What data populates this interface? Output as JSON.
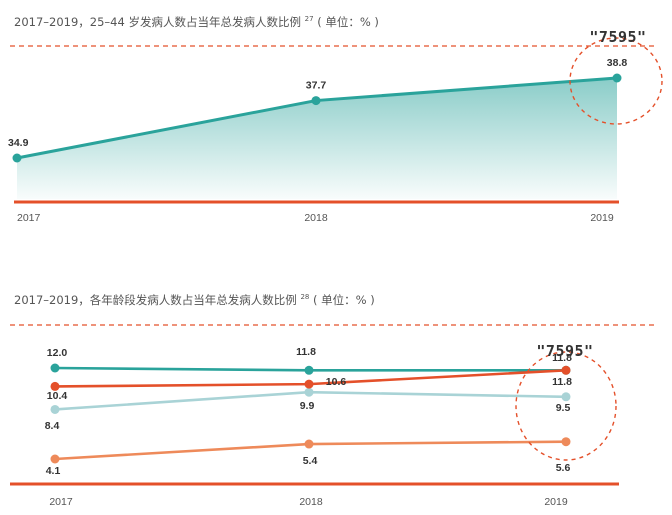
{
  "charts": [
    {
      "title_main": "2017–2019，25–44 岁发病人数占当年总发病人数比例",
      "title_sup": "27",
      "title_unit": "( 单位：% )"
    },
    {
      "title_main": "2017–2019，各年龄段发病人数占当年总发病人数比例",
      "title_sup": "28",
      "title_unit": "( 单位：% )"
    }
  ],
  "annotations": {
    "stamp_text": "\"7595\""
  },
  "colors": {
    "teal": "#2aa39b",
    "orange_red": "#e4502a",
    "light_blue": "#a9d3d6",
    "salmon": "#ee8a5a",
    "dashed": "#e4502a"
  },
  "chart_data": [
    {
      "type": "area",
      "x": [
        "2017",
        "2018",
        "2019"
      ],
      "series": [
        {
          "values": [
            34.9,
            37.7,
            38.8
          ],
          "color": "teal"
        }
      ],
      "highlight": "2019"
    },
    {
      "type": "line",
      "x": [
        "2017",
        "2018",
        "2019"
      ],
      "series": [
        {
          "values": [
            12.0,
            11.8,
            11.8
          ],
          "color": "teal"
        },
        {
          "values": [
            10.4,
            10.6,
            11.8
          ],
          "color": "orange_red"
        },
        {
          "values": [
            8.4,
            9.9,
            9.5
          ],
          "color": "light_blue"
        },
        {
          "values": [
            4.1,
            5.4,
            5.6
          ],
          "color": "salmon"
        }
      ],
      "highlight": "2019"
    }
  ]
}
